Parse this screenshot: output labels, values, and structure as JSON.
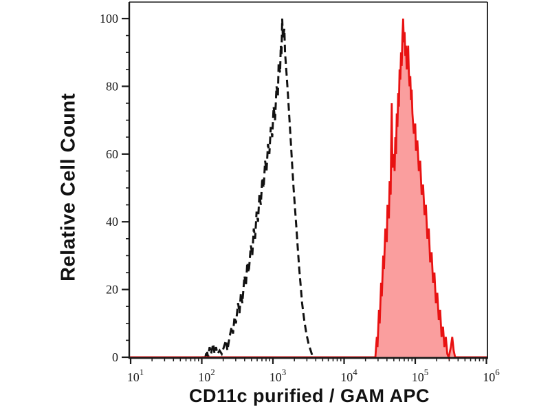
{
  "figure": {
    "xlabel": "CD11c purified / GAM APC",
    "ylabel": "Relative Cell Count"
  },
  "chart_data": {
    "type": "area",
    "subtype": "flow-cytometry-overlay-histogram",
    "title": "",
    "xlabel": "CD11c purified / GAM APC",
    "ylabel": "Relative Cell Count",
    "x_scale": "log10",
    "x_tick_base": "10",
    "x_ticks_exponents": [
      1,
      2,
      3,
      4,
      5,
      6
    ],
    "xlim_log10": [
      0.981,
      6.014
    ],
    "ylim": [
      0,
      100
    ],
    "y_major_ticks": [
      0,
      20,
      40,
      60,
      80,
      100
    ],
    "y_minor_step": 5,
    "grid": false,
    "legend": "none",
    "colors": {
      "dashed_curve": "#111111",
      "red_stroke": "#e81212",
      "red_fill": "#fa9e9e",
      "axis": "#1a1a1a",
      "text": "#111111",
      "background": "#ffffff"
    },
    "series": [
      {
        "name": "black_dashed_open_histogram",
        "line_style": "dashed",
        "color": "#111111",
        "fill": "none",
        "peak_log10x": 3.13,
        "peak_count": 100,
        "points_log10x_count": [
          [
            2.0,
            0
          ],
          [
            2.05,
            0
          ],
          [
            2.07,
            2
          ],
          [
            2.09,
            0
          ],
          [
            2.11,
            3
          ],
          [
            2.13,
            1
          ],
          [
            2.16,
            4
          ],
          [
            2.18,
            1
          ],
          [
            2.2,
            3
          ],
          [
            2.22,
            1
          ],
          [
            2.25,
            2
          ],
          [
            2.28,
            1
          ],
          [
            2.31,
            3
          ],
          [
            2.34,
            5
          ],
          [
            2.36,
            2
          ],
          [
            2.39,
            6
          ],
          [
            2.42,
            9
          ],
          [
            2.44,
            7
          ],
          [
            2.46,
            12
          ],
          [
            2.48,
            10
          ],
          [
            2.51,
            16
          ],
          [
            2.53,
            13
          ],
          [
            2.55,
            19
          ],
          [
            2.57,
            16
          ],
          [
            2.6,
            24
          ],
          [
            2.62,
            21
          ],
          [
            2.64,
            28
          ],
          [
            2.66,
            25
          ],
          [
            2.69,
            33
          ],
          [
            2.71,
            30
          ],
          [
            2.73,
            38
          ],
          [
            2.75,
            35
          ],
          [
            2.77,
            43
          ],
          [
            2.79,
            40
          ],
          [
            2.81,
            48
          ],
          [
            2.83,
            45
          ],
          [
            2.85,
            53
          ],
          [
            2.87,
            50
          ],
          [
            2.89,
            58
          ],
          [
            2.91,
            55
          ],
          [
            2.93,
            63
          ],
          [
            2.95,
            60
          ],
          [
            2.97,
            68
          ],
          [
            2.99,
            65
          ],
          [
            3.01,
            74
          ],
          [
            3.03,
            70
          ],
          [
            3.05,
            80
          ],
          [
            3.07,
            77
          ],
          [
            3.08,
            87
          ],
          [
            3.1,
            84
          ],
          [
            3.11,
            92
          ],
          [
            3.12,
            89
          ],
          [
            3.13,
            100
          ],
          [
            3.14,
            94
          ],
          [
            3.16,
            97
          ],
          [
            3.17,
            90
          ],
          [
            3.19,
            84
          ],
          [
            3.21,
            78
          ],
          [
            3.23,
            71
          ],
          [
            3.25,
            64
          ],
          [
            3.27,
            57
          ],
          [
            3.29,
            50
          ],
          [
            3.31,
            44
          ],
          [
            3.33,
            38
          ],
          [
            3.35,
            32
          ],
          [
            3.37,
            26
          ],
          [
            3.39,
            21
          ],
          [
            3.41,
            16
          ],
          [
            3.44,
            11
          ],
          [
            3.47,
            7
          ],
          [
            3.5,
            4
          ],
          [
            3.53,
            2
          ],
          [
            3.56,
            0
          ]
        ]
      },
      {
        "name": "red_filled_histogram",
        "line_style": "solid",
        "color": "#e81212",
        "fill": "#fa9e9e",
        "peak_log10x": 4.83,
        "peak_count": 100,
        "points_log10x_count": [
          [
            0.981,
            0
          ],
          [
            4.44,
            0
          ],
          [
            4.46,
            6
          ],
          [
            4.47,
            3
          ],
          [
            4.49,
            14
          ],
          [
            4.5,
            10
          ],
          [
            4.52,
            22
          ],
          [
            4.53,
            18
          ],
          [
            4.55,
            30
          ],
          [
            4.56,
            26
          ],
          [
            4.58,
            38
          ],
          [
            4.6,
            34
          ],
          [
            4.61,
            45
          ],
          [
            4.63,
            41
          ],
          [
            4.64,
            52
          ],
          [
            4.655,
            48
          ],
          [
            4.66,
            60
          ],
          [
            4.67,
            75
          ],
          [
            4.675,
            62
          ],
          [
            4.68,
            56
          ],
          [
            4.7,
            60
          ],
          [
            4.71,
            55
          ],
          [
            4.72,
            65
          ],
          [
            4.73,
            60
          ],
          [
            4.74,
            72
          ],
          [
            4.75,
            68
          ],
          [
            4.76,
            78
          ],
          [
            4.77,
            74
          ],
          [
            4.78,
            85
          ],
          [
            4.79,
            82
          ],
          [
            4.8,
            90
          ],
          [
            4.81,
            86
          ],
          [
            4.82,
            95
          ],
          [
            4.83,
            100
          ],
          [
            4.84,
            93
          ],
          [
            4.85,
            96
          ],
          [
            4.86,
            89
          ],
          [
            4.87,
            92
          ],
          [
            4.88,
            85
          ],
          [
            4.89,
            88
          ],
          [
            4.9,
            92
          ],
          [
            4.91,
            84
          ],
          [
            4.92,
            80
          ],
          [
            4.93,
            83
          ],
          [
            4.94,
            76
          ],
          [
            4.95,
            79
          ],
          [
            4.96,
            72
          ],
          [
            4.98,
            66
          ],
          [
            5.0,
            69
          ],
          [
            5.01,
            61
          ],
          [
            5.03,
            64
          ],
          [
            5.05,
            55
          ],
          [
            5.07,
            58
          ],
          [
            5.09,
            48
          ],
          [
            5.11,
            51
          ],
          [
            5.13,
            42
          ],
          [
            5.15,
            45
          ],
          [
            5.17,
            35
          ],
          [
            5.19,
            38
          ],
          [
            5.21,
            28
          ],
          [
            5.23,
            31
          ],
          [
            5.25,
            22
          ],
          [
            5.27,
            25
          ],
          [
            5.29,
            16
          ],
          [
            5.31,
            19
          ],
          [
            5.33,
            11
          ],
          [
            5.35,
            14
          ],
          [
            5.37,
            6
          ],
          [
            5.39,
            9
          ],
          [
            5.41,
            3
          ],
          [
            5.43,
            6
          ],
          [
            5.45,
            1
          ],
          [
            5.47,
            0
          ],
          [
            5.5,
            3
          ],
          [
            5.52,
            6
          ],
          [
            5.54,
            2
          ],
          [
            5.56,
            0
          ],
          [
            6.014,
            0
          ]
        ]
      }
    ]
  }
}
